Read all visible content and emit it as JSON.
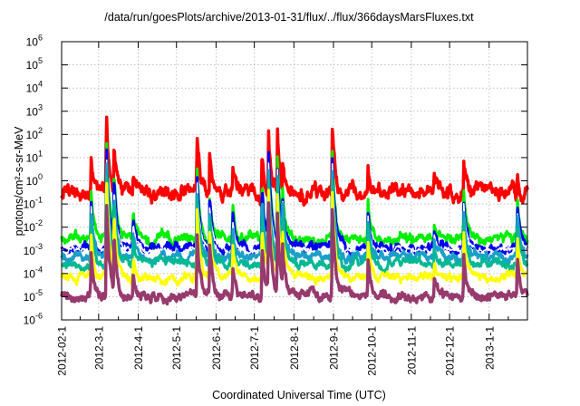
{
  "chart_data": {
    "type": "line",
    "title": "/data/run/goesPlots/archive/2013-01-31/flux/../flux/366daysMarsFluxes.txt",
    "xlabel": "Coordinated Universal Time (UTC)",
    "ylabel": "protons/cm²-s-sr-MeV",
    "yscale": "log",
    "ylim_exponent": [
      -6,
      6
    ],
    "y_tick_labels": [
      {
        "base": "10",
        "exp": "-6"
      },
      {
        "base": "10",
        "exp": "-5"
      },
      {
        "base": "10",
        "exp": "-4"
      },
      {
        "base": "10",
        "exp": "-3"
      },
      {
        "base": "10",
        "exp": "-2"
      },
      {
        "base": "10",
        "exp": "-1"
      },
      {
        "base": "10",
        "exp": "0"
      },
      {
        "base": "10",
        "exp": "1"
      },
      {
        "base": "10",
        "exp": "2"
      },
      {
        "base": "10",
        "exp": "3"
      },
      {
        "base": "10",
        "exp": "4"
      },
      {
        "base": "10",
        "exp": "5"
      },
      {
        "base": "10",
        "exp": "6"
      }
    ],
    "x_start": "2012-02-01",
    "x_end": "2013-01-31",
    "x_tick_labels": [
      "2012-02-1",
      "2012-3-1",
      "2012-4-1",
      "2012-5-1",
      "2012-6-1",
      "2012-7-1",
      "2012-8-1",
      "2012-9-1",
      "2012-10-1",
      "2012-11-1",
      "2012-12-1",
      "2013-1-1"
    ],
    "x_tick_dates": [
      "2012-02-01",
      "2012-03-01",
      "2012-04-01",
      "2012-05-01",
      "2012-06-01",
      "2012-07-01",
      "2012-08-01",
      "2012-09-01",
      "2012-10-01",
      "2012-11-01",
      "2012-12-01",
      "2013-01-01"
    ],
    "grid": true,
    "legend": "none",
    "events": [
      {
        "date": "2012-02-24",
        "amp": 0.45
      },
      {
        "date": "2012-03-07",
        "amp": 1.0
      },
      {
        "date": "2012-03-13",
        "amp": 0.65
      },
      {
        "date": "2012-03-28",
        "amp": 0.25
      },
      {
        "date": "2012-05-17",
        "amp": 0.7
      },
      {
        "date": "2012-05-27",
        "amp": 0.45
      },
      {
        "date": "2012-06-14",
        "amp": 0.3
      },
      {
        "date": "2012-07-07",
        "amp": 0.55
      },
      {
        "date": "2012-07-12",
        "amp": 0.9
      },
      {
        "date": "2012-07-19",
        "amp": 0.8
      },
      {
        "date": "2012-07-23",
        "amp": 0.5
      },
      {
        "date": "2012-08-31",
        "amp": 0.85
      },
      {
        "date": "2012-09-28",
        "amp": 0.35
      },
      {
        "date": "2012-11-19",
        "amp": 0.15
      },
      {
        "date": "2012-12-12",
        "amp": 0.45
      },
      {
        "date": "2013-01-23",
        "amp": 0.4
      }
    ],
    "series": [
      {
        "color": "#ff0000",
        "baseline_log10": -0.55,
        "noise": 0.25,
        "peak_log10": 3.0,
        "width": 3.5
      },
      {
        "color": "#00ee00",
        "baseline_log10": -2.5,
        "noise": 0.18,
        "peak_log10": 2.2,
        "width": 3.0
      },
      {
        "color": "#0000ee",
        "baseline_log10": -2.9,
        "noise": 0.17,
        "peak_log10": 1.8,
        "width": 3.0
      },
      {
        "color": "#ffffff",
        "baseline_log10": -3.0,
        "noise": 0.1,
        "peak_log10": 1.5,
        "width": 1.5
      },
      {
        "color": "#1ba0c8",
        "baseline_log10": -3.3,
        "noise": 0.15,
        "peak_log10": 1.2,
        "width": 3.0
      },
      {
        "color": "#00b894",
        "baseline_log10": -3.6,
        "noise": 0.14,
        "peak_log10": 0.8,
        "width": 3.0
      },
      {
        "color": "#ffff00",
        "baseline_log10": -4.15,
        "noise": 0.14,
        "peak_log10": 0.3,
        "width": 3.0
      },
      {
        "color": "#973a6e",
        "baseline_log10": -4.95,
        "noise": 0.16,
        "peak_log10": -0.4,
        "width": 3.5
      }
    ]
  }
}
